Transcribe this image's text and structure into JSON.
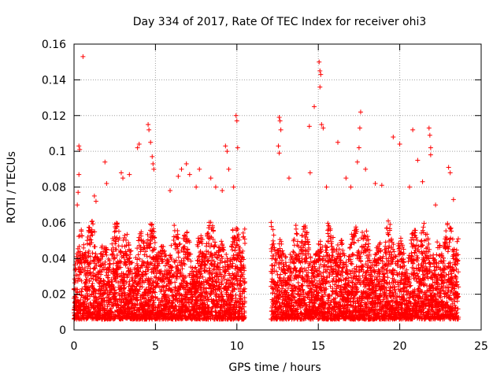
{
  "chart_data": {
    "type": "scatter",
    "title": "Day 334 of 2017, Rate Of TEC Index for receiver ohi3",
    "xlabel": "GPS time / hours",
    "ylabel": "ROTI / TECUs",
    "xlim": [
      0,
      25
    ],
    "ylim": [
      0,
      0.16
    ],
    "x_ticks": [
      "0",
      "5",
      "10",
      "15",
      "20",
      "25"
    ],
    "y_ticks": [
      "0",
      "0.02",
      "0.04",
      "0.06",
      "0.08",
      "0.1",
      "0.12",
      "0.14",
      "0.16"
    ],
    "grid": true,
    "legend": "none",
    "marker": "plus",
    "color": "#ff0000",
    "series": [
      {
        "values": [
          [
            0.55,
            0.153
          ],
          [
            0.3,
            0.103
          ],
          [
            0.35,
            0.101
          ],
          [
            0.3,
            0.087
          ],
          [
            0.25,
            0.077
          ],
          [
            0.2,
            0.07
          ],
          [
            1.25,
            0.075
          ],
          [
            1.35,
            0.072
          ],
          [
            1.9,
            0.094
          ],
          [
            2.0,
            0.082
          ],
          [
            2.9,
            0.088
          ],
          [
            3.0,
            0.085
          ],
          [
            3.4,
            0.087
          ],
          [
            3.9,
            0.102
          ],
          [
            4.0,
            0.104
          ],
          [
            4.55,
            0.115
          ],
          [
            4.6,
            0.112
          ],
          [
            4.7,
            0.105
          ],
          [
            4.8,
            0.097
          ],
          [
            4.85,
            0.093
          ],
          [
            4.9,
            0.09
          ],
          [
            5.9,
            0.078
          ],
          [
            6.4,
            0.086
          ],
          [
            6.6,
            0.09
          ],
          [
            6.9,
            0.093
          ],
          [
            7.1,
            0.087
          ],
          [
            7.5,
            0.08
          ],
          [
            7.7,
            0.09
          ],
          [
            8.4,
            0.085
          ],
          [
            8.7,
            0.08
          ],
          [
            9.1,
            0.078
          ],
          [
            9.3,
            0.103
          ],
          [
            9.4,
            0.1
          ],
          [
            9.5,
            0.09
          ],
          [
            9.8,
            0.08
          ],
          [
            9.95,
            0.12
          ],
          [
            10.0,
            0.117
          ],
          [
            10.05,
            0.102
          ],
          [
            12.6,
            0.119
          ],
          [
            12.65,
            0.117
          ],
          [
            12.7,
            0.112
          ],
          [
            12.55,
            0.103
          ],
          [
            12.6,
            0.099
          ],
          [
            13.2,
            0.085
          ],
          [
            14.45,
            0.114
          ],
          [
            14.5,
            0.088
          ],
          [
            14.75,
            0.125
          ],
          [
            15.05,
            0.15
          ],
          [
            15.1,
            0.145
          ],
          [
            15.15,
            0.143
          ],
          [
            15.1,
            0.136
          ],
          [
            15.2,
            0.115
          ],
          [
            15.3,
            0.113
          ],
          [
            15.5,
            0.08
          ],
          [
            16.2,
            0.105
          ],
          [
            16.7,
            0.085
          ],
          [
            17.0,
            0.08
          ],
          [
            17.4,
            0.094
          ],
          [
            17.6,
            0.122
          ],
          [
            17.55,
            0.113
          ],
          [
            17.5,
            0.102
          ],
          [
            17.9,
            0.09
          ],
          [
            18.5,
            0.082
          ],
          [
            18.9,
            0.081
          ],
          [
            19.6,
            0.108
          ],
          [
            20.0,
            0.104
          ],
          [
            20.6,
            0.08
          ],
          [
            20.8,
            0.112
          ],
          [
            21.1,
            0.095
          ],
          [
            21.4,
            0.083
          ],
          [
            21.8,
            0.113
          ],
          [
            21.85,
            0.109
          ],
          [
            21.9,
            0.102
          ],
          [
            21.9,
            0.098
          ],
          [
            22.2,
            0.07
          ],
          [
            23.0,
            0.091
          ],
          [
            23.1,
            0.088
          ],
          [
            23.3,
            0.073
          ]
        ]
      }
    ],
    "dense_regions": [
      {
        "x_start": 0.0,
        "x_end": 10.5,
        "y_min": 0.004,
        "y_max": 0.06
      },
      {
        "x_start": 12.1,
        "x_end": 23.6,
        "y_min": 0.004,
        "y_max": 0.06
      }
    ]
  }
}
